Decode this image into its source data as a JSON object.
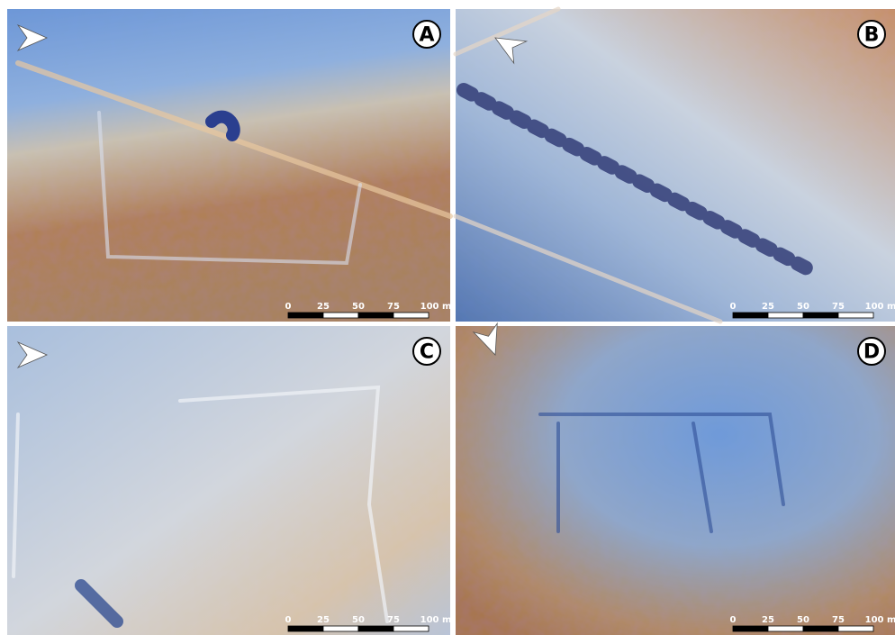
{
  "panels": [
    {
      "label": "A",
      "scale_labels": [
        "0",
        "25",
        "50",
        "75",
        "100 m"
      ]
    },
    {
      "label": "B",
      "scale_labels": [
        "0",
        "25",
        "50",
        "75",
        "100 m"
      ]
    },
    {
      "label": "C",
      "scale_labels": [
        "0",
        "25",
        "50",
        "75",
        "100 m"
      ]
    },
    {
      "label": "D",
      "scale_labels": [
        "0",
        "25",
        "50",
        "75",
        "100 m"
      ]
    }
  ]
}
